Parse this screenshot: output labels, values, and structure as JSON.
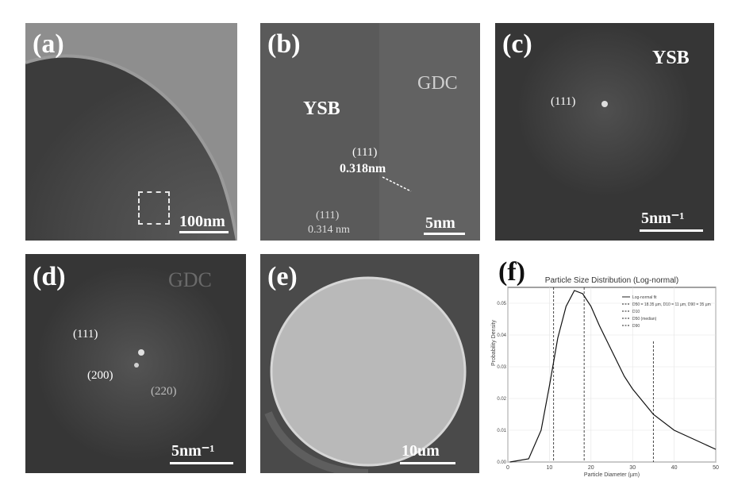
{
  "panels": {
    "a": {
      "label": "(a)",
      "scale": "100nm"
    },
    "b": {
      "label": "(b)",
      "phase1": "YSB",
      "phase2": "GDC",
      "plane1": "(111)",
      "dspace1": "0.318nm",
      "plane2": "(111)",
      "dspace2": "0.314 nm",
      "scale": "5nm"
    },
    "c": {
      "label": "(c)",
      "phase": "YSB",
      "plane": "(111)",
      "scale": "5nm⁻¹"
    },
    "d": {
      "label": "(d)",
      "phase": "GDC",
      "plane1": "(111)",
      "plane2": "(200)",
      "plane3": "(220)",
      "scale": "5nm⁻¹"
    },
    "e": {
      "label": "(e)",
      "scale": "10um"
    },
    "f": {
      "label": "(f)"
    }
  },
  "chart_data": {
    "type": "line",
    "title": "Particle Size Distribution (Log-normal)",
    "xlabel": "Particle Diameter (µm)",
    "ylabel": "Probability Density",
    "xlim": [
      0,
      50
    ],
    "ylim": [
      0,
      0.055
    ],
    "xticks": [
      "0",
      "10",
      "20",
      "30",
      "40",
      "50"
    ],
    "yticks": [
      "0.00",
      "0.01",
      "0.02",
      "0.03",
      "0.04",
      "0.05"
    ],
    "legend_position": "top-right",
    "legend": [
      "Log-normal fit",
      "D50 = 18.35 µm, D10 = 11 µm, D90 = 35 µm",
      "D10",
      "D50 (median)",
      "D90"
    ],
    "grid": true,
    "curve": {
      "x": [
        0.5,
        5,
        8,
        10,
        12,
        14,
        16,
        18,
        20,
        22,
        25,
        28,
        30,
        35,
        40,
        45,
        50
      ],
      "y": [
        0.0,
        0.001,
        0.01,
        0.024,
        0.039,
        0.049,
        0.054,
        0.053,
        0.049,
        0.043,
        0.035,
        0.027,
        0.023,
        0.015,
        0.01,
        0.007,
        0.004
      ]
    },
    "vlines": [
      11,
      18.35,
      35
    ]
  }
}
